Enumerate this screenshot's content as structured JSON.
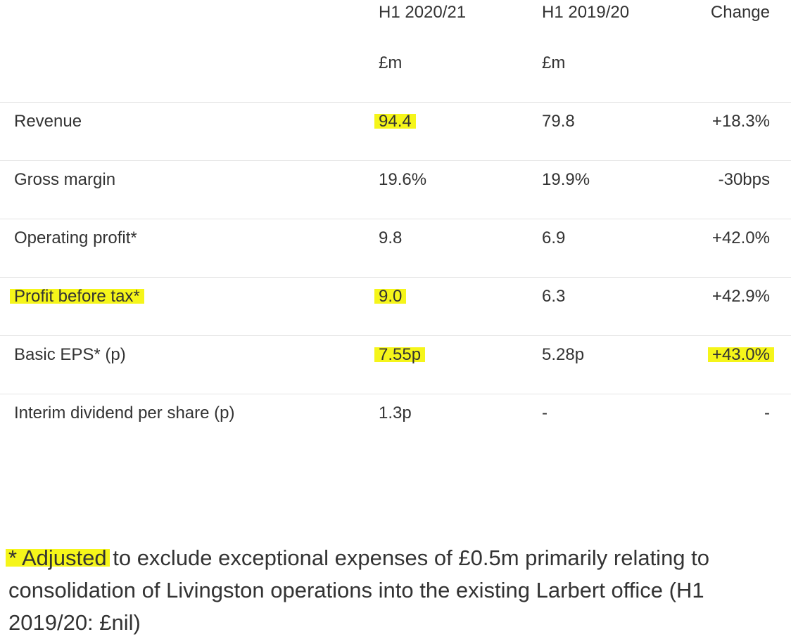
{
  "table": {
    "headers": {
      "current": "H1 2020/21",
      "previous": "H1 2019/20",
      "change": "Change",
      "current_unit": "£m",
      "previous_unit": "£m"
    },
    "rows": [
      {
        "label": "Revenue",
        "current": "94.4",
        "previous": "79.8",
        "change": "+18.3%"
      },
      {
        "label": "Gross margin",
        "current": "19.6%",
        "previous": "19.9%",
        "change": "-30bps"
      },
      {
        "label": "Operating profit*",
        "current": "9.8",
        "previous": "6.9",
        "change": "+42.0%"
      },
      {
        "label": "Profit before tax*",
        "current": "9.0",
        "previous": "6.3",
        "change": "+42.9%"
      },
      {
        "label": "Basic EPS* (p)",
        "current": "7.55p",
        "previous": "5.28p",
        "change": "+43.0%"
      },
      {
        "label": "Interim dividend per share (p)",
        "current": "1.3p",
        "previous": "-",
        "change": "-"
      }
    ]
  },
  "footnote": {
    "highlighted": "* Adjusted",
    "text": " to exclude exceptional expenses of £0.5m primarily relating to consolidation of Livingston operations into the existing Larbert office (H1 2019/20: £nil)"
  },
  "colors": {
    "highlight": "#f5f51a",
    "text": "#333333",
    "divider": "#e4e4e4"
  }
}
